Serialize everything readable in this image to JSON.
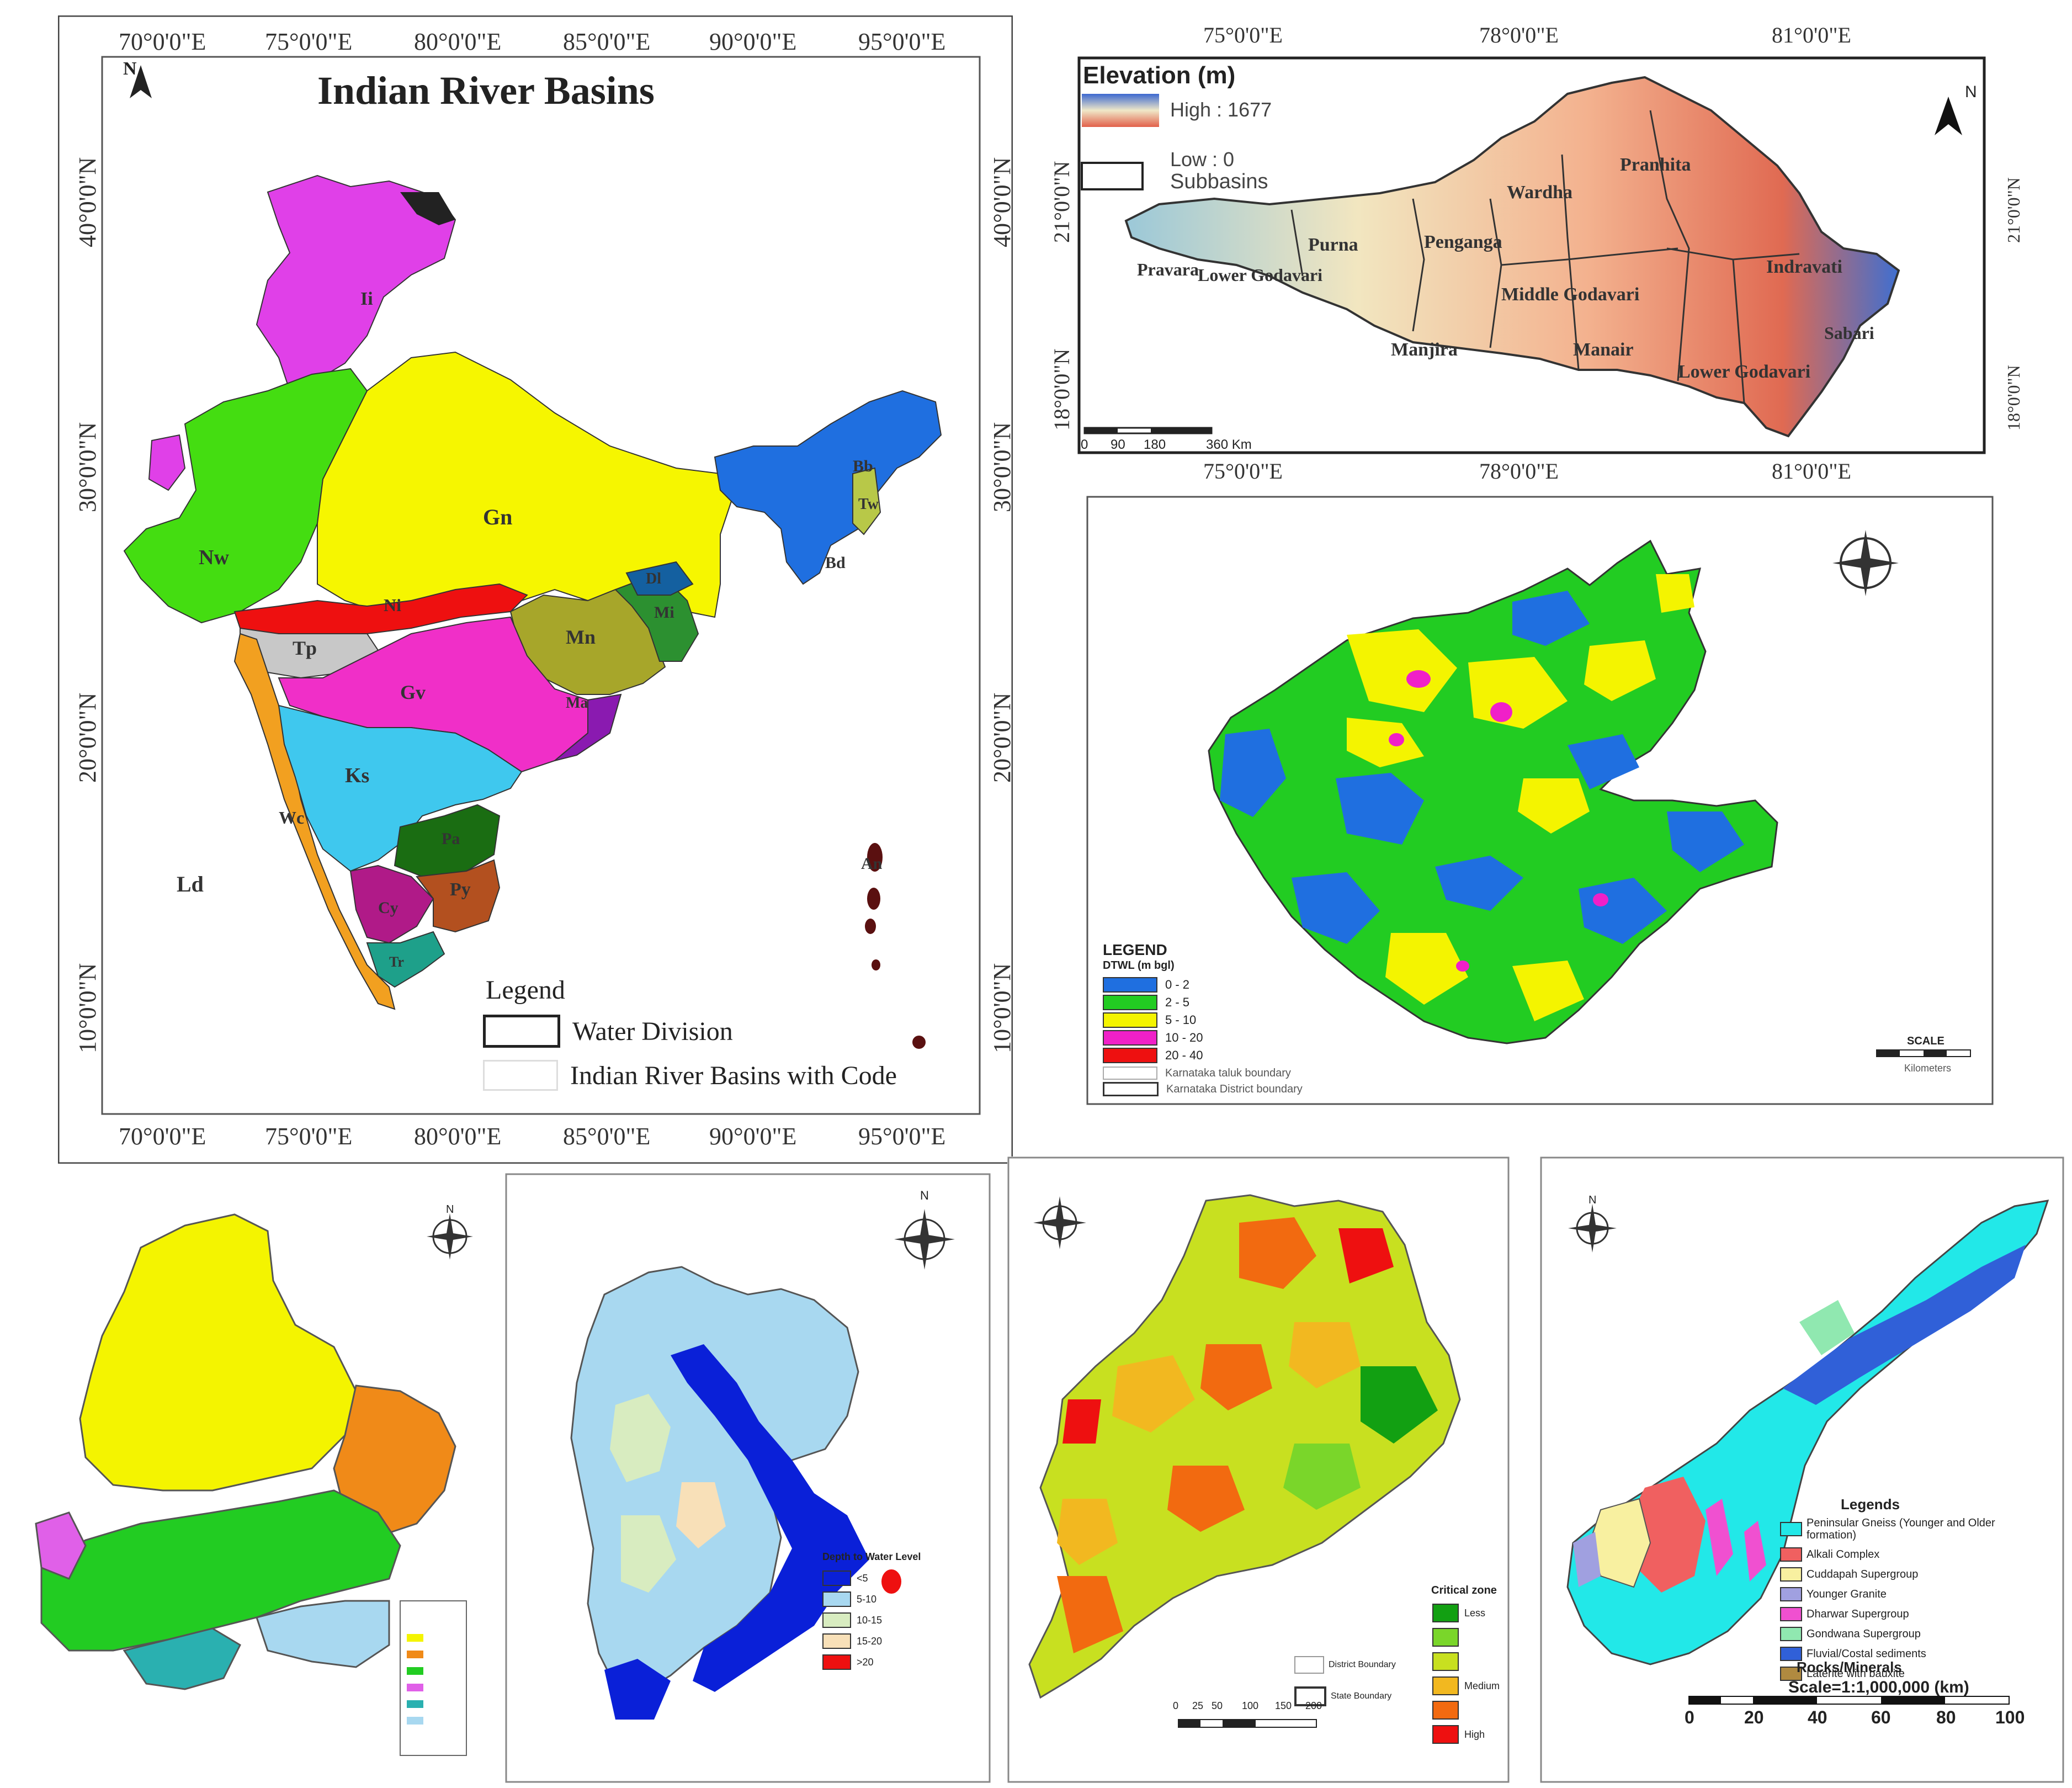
{
  "panel_a": {
    "title": "Indian River Basins",
    "north": "N",
    "lon_ticks": [
      "70°0'0\"E",
      "75°0'0\"E",
      "80°0'0\"E",
      "85°0'0\"E",
      "90°0'0\"E",
      "95°0'0\"E"
    ],
    "lat_ticks": [
      "40°0'0\"N",
      "30°0'0\"N",
      "20°0'0\"N",
      "10°0'0\"N"
    ],
    "basin_codes": [
      "Ii",
      "Ld",
      "Gn",
      "Nw",
      "Bb",
      "Tw",
      "Bd",
      "Dl",
      "Mi",
      "Mn",
      "Ni",
      "Tp",
      "Gv",
      "Ma",
      "Ks",
      "Wc",
      "Pa",
      "Py",
      "Cy",
      "Tr",
      "Ld",
      "An"
    ],
    "legend": {
      "title": "Legend",
      "items": [
        "Water Division",
        "Indian River Basins with Code"
      ]
    },
    "colors": {
      "Ii": "#e040e8",
      "Nw": "#44dd11",
      "Gn": "#f6f600",
      "Bb": "#1f6fe0",
      "Ni": "#ee1010",
      "Tp": "#c8c8c8",
      "Gv": "#f02fc8",
      "Mn": "#a7a62a",
      "Mi": "#2c9030",
      "Ks": "#3fc8ee",
      "Pa": "#1a6d12",
      "Py": "#b3501f",
      "Cy": "#b01a88",
      "Wc": "#f2a020",
      "Tr": "#1ea08a"
    }
  },
  "panel_b": {
    "legend_title": "Elevation (m)",
    "high": "High : 1677",
    "low": "Low : 0",
    "subbasins": "Subbasins",
    "north": "N",
    "top_ticks": [
      "75°0'0\"E",
      "78°0'0\"E",
      "81°0'0\"E"
    ],
    "bottom_ticks": [
      "75°0'0\"E",
      "78°0'0\"E",
      "81°0'0\"E"
    ],
    "lat_ticks": [
      "21°0'0\"N",
      "18°0'0\"N"
    ],
    "scale": [
      "0",
      "90",
      "180",
      "360 Km"
    ],
    "subbasin_names": [
      "Pranhita",
      "Wardha",
      "Purna",
      "Penganga",
      "Pravara",
      "Lower Godavari",
      "Middle Godavari",
      "Indravati",
      "Manjira",
      "Manair",
      "Lower Godavari",
      "Sabari"
    ]
  },
  "panel_c": {
    "legend_title": "LEGEND",
    "legend_sub": "DTWL (m bgl)",
    "items": [
      {
        "label": "0 - 2",
        "color": "#1f6fe0"
      },
      {
        "label": "2 - 5",
        "color": "#22cc22"
      },
      {
        "label": "5 - 10",
        "color": "#f4f400"
      },
      {
        "label": "10 - 20",
        "color": "#f020c8"
      },
      {
        "label": "20 - 40",
        "color": "#ee1010"
      }
    ],
    "boundaries": [
      "Karnataka taluk boundary",
      "Karnataka District boundary"
    ],
    "scale": "SCALE",
    "km": "Kilometers"
  },
  "panel_d": {
    "compass": "N",
    "colors": [
      "#f4f400",
      "#22cc22",
      "#f08a18",
      "#e060e8",
      "#2ab0b0",
      "#a8d8f0"
    ]
  },
  "panel_e": {
    "compass": "N",
    "legend_title": "Depth to Water Level",
    "items": [
      {
        "label": "<5",
        "color": "#0a20d8"
      },
      {
        "label": "5-10",
        "color": "#a8d8f0"
      },
      {
        "label": "10-15",
        "color": "#d8ecc0"
      },
      {
        "label": "15-20",
        "color": "#f8e0b8"
      },
      {
        "label": ">20",
        "color": "#ee1010"
      }
    ]
  },
  "panel_f": {
    "compass": "N",
    "legend_title": "Critical zone",
    "items": [
      {
        "label": "Less",
        "color": "#12a012"
      },
      {
        "label": "",
        "color": "#7ad62a"
      },
      {
        "label": "",
        "color": "#c8e020"
      },
      {
        "label": "Medium",
        "color": "#f2b820"
      },
      {
        "label": "",
        "color": "#f26a10"
      },
      {
        "label": "High",
        "color": "#ee1010"
      }
    ],
    "boundaries": [
      "District Boundary",
      "State Boundary"
    ],
    "scale": [
      "0",
      "25",
      "50",
      "100",
      "150",
      "200"
    ]
  },
  "panel_g": {
    "compass": "N",
    "legend_title": "Legends",
    "items": [
      {
        "label": "Peninsular Gneiss (Younger and Older formation)",
        "color": "#22e8e8"
      },
      {
        "label": "Alkali Complex",
        "color": "#f06060"
      },
      {
        "label": "Cuddapah Supergroup",
        "color": "#f8f0a0"
      },
      {
        "label": "Younger Granite",
        "color": "#a0a0e0"
      },
      {
        "label": "Dharwar Supergroup",
        "color": "#f050d0"
      },
      {
        "label": "Gondwana Supergroup",
        "color": "#90e8b0"
      },
      {
        "label": "Fluvial/Costal sediments",
        "color": "#3060d8"
      },
      {
        "label": "Laterite with bauxite",
        "color": "#b08a40"
      }
    ],
    "rocks": "Rocks/Minerals",
    "scale_label": "Scale=1:1,000,000 (km)",
    "scale_ticks": [
      "0",
      "20",
      "40",
      "60",
      "80",
      "100"
    ]
  }
}
